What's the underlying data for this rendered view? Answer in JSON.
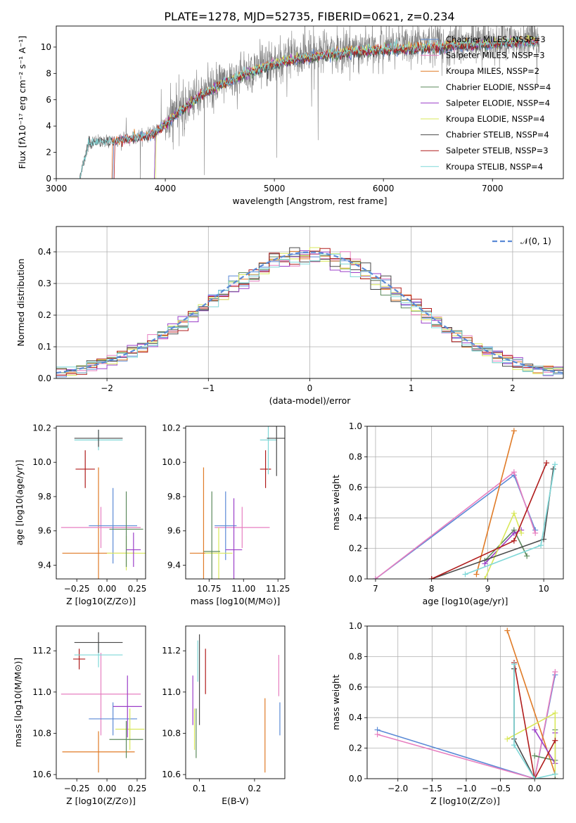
{
  "suptitle": "PLATE=1278, MJD=52735, FIBERID=0621, z=0.234",
  "colors": {
    "chabrier_miles": "#5b8ad6",
    "salpeter_miles": "#e77fc0",
    "kroupa_miles": "#e07b27",
    "chabrier_elodie": "#5c8a5c",
    "salpeter_elodie": "#9b3fc8",
    "kroupa_elodie": "#d9e85a",
    "chabrier_stelib": "#4a4a4a",
    "salpeter_stelib": "#b01c1c",
    "kroupa_stelib": "#7fd8d8",
    "data": "#808080",
    "normal": "#5b8ad6"
  },
  "chart_data": [
    {
      "id": "spectrum",
      "type": "line",
      "xlabel": "wavelength [Angstrom, rest frame]",
      "ylabel": "Flux [fλ10⁻¹⁷ erg cm⁻² s⁻¹ A⁻¹]",
      "xlim": [
        3000,
        7650
      ],
      "ylim": [
        0,
        11.6
      ],
      "xticks": [
        3000,
        4000,
        5000,
        6000,
        7000
      ],
      "yticks": [
        0,
        2,
        4,
        6,
        8,
        10
      ],
      "legend_position": "right",
      "legend": [
        "Chabrier MILES, NSSP=3",
        "Salpeter MILES, NSSP=3",
        "Kroupa MILES, NSSP=2",
        "Chabrier ELODIE, NSSP=4",
        "Salpeter ELODIE, NSSP=4",
        "Kroupa ELODIE, NSSP=4",
        "Chabrier STELIB, NSSP=4",
        "Salpeter STELIB, NSSP=3",
        "Kroupa STELIB, NSSP=4"
      ],
      "continuum": {
        "wavelength": [
          3210,
          3300,
          3500,
          3700,
          3900,
          4000,
          4100,
          4300,
          4500,
          4700,
          4900,
          5100,
          5300,
          5500,
          5700,
          5900,
          6100,
          6300,
          6500,
          6700,
          6900,
          7100,
          7300,
          7430
        ],
        "flux": [
          0.0,
          2.8,
          2.9,
          3.1,
          3.5,
          4.2,
          5.0,
          6.3,
          7.2,
          8.0,
          8.6,
          9.1,
          9.4,
          9.6,
          9.8,
          9.9,
          10.0,
          10.1,
          10.2,
          10.3,
          10.4,
          10.5,
          10.6,
          10.7
        ]
      }
    },
    {
      "id": "residuals",
      "type": "line",
      "xlabel": "(data-model)/error",
      "ylabel": "Normed distribution",
      "xlim": [
        -2.5,
        2.5
      ],
      "ylim": [
        0,
        0.48
      ],
      "xticks": [
        -2,
        -1,
        0,
        1,
        2
      ],
      "yticks": [
        0.0,
        0.1,
        0.2,
        0.3,
        0.4
      ],
      "grid": true,
      "legend_position": "top-right",
      "legend": [
        "𝒩(0, 1)"
      ]
    },
    {
      "id": "age_vs_Z",
      "type": "scatter",
      "xlabel": "Z [log10(Z/Z⊙)]",
      "ylabel": "age [log10(age/yr)]",
      "xlim": [
        -0.42,
        0.32
      ],
      "ylim": [
        9.32,
        10.21
      ],
      "xticks": [
        -0.25,
        0.0,
        0.25
      ],
      "yticks": [
        9.4,
        9.6,
        9.8,
        10.0,
        10.2
      ],
      "points": [
        {
          "c": "kroupa_miles",
          "x": -0.07,
          "xe": 0.3,
          "y": 9.47,
          "ye": 0.5
        },
        {
          "c": "salpeter_miles",
          "x": -0.05,
          "xe": 0.33,
          "y": 9.62,
          "ye": 0.12
        },
        {
          "c": "chabrier_miles",
          "x": 0.05,
          "xe": 0.2,
          "y": 9.63,
          "ye": 0.22
        },
        {
          "c": "kroupa_elodie",
          "x": 0.16,
          "xe": 0.16,
          "y": 9.47,
          "ye": 0.1
        },
        {
          "c": "chabrier_elodie",
          "x": 0.16,
          "xe": 0.14,
          "y": 9.61,
          "ye": 0.22
        },
        {
          "c": "salpeter_elodie",
          "x": 0.22,
          "xe": 0.06,
          "y": 9.49,
          "ye": 0.1
        },
        {
          "c": "salpeter_stelib",
          "x": -0.18,
          "xe": 0.08,
          "y": 9.96,
          "ye": 0.11
        },
        {
          "c": "kroupa_stelib",
          "x": -0.07,
          "xe": 0.2,
          "y": 10.13,
          "ye": 0.06
        },
        {
          "c": "chabrier_stelib",
          "x": -0.07,
          "xe": 0.2,
          "y": 10.14,
          "ye": 0.05
        }
      ]
    },
    {
      "id": "age_vs_mass",
      "type": "scatter",
      "xlabel": "mass [log10(M/M⊙)]",
      "ylabel": "",
      "xlim": [
        10.58,
        11.3
      ],
      "ylim": [
        9.32,
        10.21
      ],
      "xticks": [
        10.75,
        11.0,
        11.25
      ],
      "yticks": [
        9.4,
        9.6,
        9.8,
        10.0,
        10.2
      ],
      "points": [
        {
          "c": "kroupa_miles",
          "x": 10.71,
          "xe": 0.1,
          "y": 9.47,
          "ye": 0.5
        },
        {
          "c": "salpeter_miles",
          "x": 10.99,
          "xe": 0.2,
          "y": 9.62,
          "ye": 0.12
        },
        {
          "c": "chabrier_miles",
          "x": 10.87,
          "xe": 0.08,
          "y": 9.63,
          "ye": 0.2
        },
        {
          "c": "kroupa_elodie",
          "x": 10.82,
          "xe": 0.1,
          "y": 9.47,
          "ye": 0.15
        },
        {
          "c": "chabrier_elodie",
          "x": 10.77,
          "xe": 0.06,
          "y": 9.48,
          "ye": 0.35
        },
        {
          "c": "salpeter_elodie",
          "x": 10.93,
          "xe": 0.06,
          "y": 9.49,
          "ye": 0.3
        },
        {
          "c": "salpeter_stelib",
          "x": 11.16,
          "xe": 0.04,
          "y": 9.96,
          "ye": 0.11
        },
        {
          "c": "kroupa_stelib",
          "x": 11.18,
          "xe": 0.06,
          "y": 10.13,
          "ye": 0.2
        },
        {
          "c": "chabrier_stelib",
          "x": 11.24,
          "xe": 0.07,
          "y": 10.14,
          "ye": 0.22
        }
      ]
    },
    {
      "id": "weight_vs_age",
      "type": "line",
      "xlabel": "age [log10(age/yr)]",
      "ylabel": "mass weight",
      "xlim": [
        6.85,
        10.35
      ],
      "ylim": [
        0,
        1.0
      ],
      "xticks": [
        7,
        8,
        9,
        10
      ],
      "yticks": [
        0.0,
        0.2,
        0.4,
        0.6,
        0.8,
        1.0
      ],
      "grid": true,
      "series": [
        {
          "c": "chabrier_miles",
          "x": [
            7.0,
            9.47,
            9.85
          ],
          "y": [
            0.0,
            0.68,
            0.32
          ]
        },
        {
          "c": "salpeter_miles",
          "x": [
            7.0,
            9.47,
            9.85
          ],
          "y": [
            0.0,
            0.7,
            0.3
          ]
        },
        {
          "c": "kroupa_miles",
          "x": [
            8.8,
            9.47
          ],
          "y": [
            0.03,
            0.97
          ]
        },
        {
          "c": "chabrier_elodie",
          "x": [
            8.95,
            9.47,
            9.7
          ],
          "y": [
            0.12,
            0.32,
            0.15
          ]
        },
        {
          "c": "salpeter_elodie",
          "x": [
            8.95,
            9.47,
            9.6
          ],
          "y": [
            0.1,
            0.3,
            0.32
          ]
        },
        {
          "c": "kroupa_elodie",
          "x": [
            8.95,
            9.47,
            9.6
          ],
          "y": [
            0.0,
            0.43,
            0.3
          ]
        },
        {
          "c": "chabrier_stelib",
          "x": [
            8.0,
            10.0,
            10.17
          ],
          "y": [
            0.0,
            0.26,
            0.72
          ]
        },
        {
          "c": "salpeter_stelib",
          "x": [
            8.0,
            9.47,
            10.05
          ],
          "y": [
            0.0,
            0.25,
            0.76
          ]
        },
        {
          "c": "kroupa_stelib",
          "x": [
            8.6,
            9.95,
            10.2
          ],
          "y": [
            0.03,
            0.22,
            0.75
          ]
        }
      ]
    },
    {
      "id": "mass_vs_Z",
      "type": "scatter",
      "xlabel": "Z [log10(Z/Z⊙)]",
      "ylabel": "mass [log10(M/M⊙)]",
      "xlim": [
        -0.42,
        0.32
      ],
      "ylim": [
        10.58,
        11.32
      ],
      "xticks": [
        -0.25,
        0.0,
        0.25
      ],
      "yticks": [
        10.6,
        10.8,
        11.0,
        11.2
      ],
      "points": [
        {
          "c": "kroupa_miles",
          "x": -0.07,
          "xe": 0.3,
          "y": 10.71,
          "ye": 0.1
        },
        {
          "c": "salpeter_miles",
          "x": -0.05,
          "xe": 0.33,
          "y": 10.99,
          "ye": 0.2
        },
        {
          "c": "chabrier_miles",
          "x": 0.05,
          "xe": 0.2,
          "y": 10.87,
          "ye": 0.08
        },
        {
          "c": "kroupa_elodie",
          "x": 0.19,
          "xe": 0.12,
          "y": 10.82,
          "ye": 0.1
        },
        {
          "c": "chabrier_elodie",
          "x": 0.16,
          "xe": 0.14,
          "y": 10.77,
          "ye": 0.09
        },
        {
          "c": "salpeter_elodie",
          "x": 0.17,
          "xe": 0.12,
          "y": 10.93,
          "ye": 0.15
        },
        {
          "c": "salpeter_stelib",
          "x": -0.23,
          "xe": 0.05,
          "y": 11.16,
          "ye": 0.05
        },
        {
          "c": "kroupa_stelib",
          "x": -0.07,
          "xe": 0.2,
          "y": 11.18,
          "ye": 0.06
        },
        {
          "c": "chabrier_stelib",
          "x": -0.07,
          "xe": 0.2,
          "y": 11.24,
          "ye": 0.05
        }
      ]
    },
    {
      "id": "mass_vs_ebv",
      "type": "scatter",
      "xlabel": "E(B-V)",
      "ylabel": "",
      "xlim": [
        0.075,
        0.255
      ],
      "ylim": [
        10.58,
        11.32
      ],
      "xticks": [
        0.1,
        0.2
      ],
      "yticks": [
        10.6,
        10.8,
        11.0,
        11.2
      ],
      "points": [
        {
          "c": "kroupa_miles",
          "x": 0.219,
          "xe": 0,
          "y": 10.79,
          "ye": 0.18
        },
        {
          "c": "salpeter_miles",
          "x": 0.244,
          "xe": 0,
          "y": 11.08,
          "ye": 0.1
        },
        {
          "c": "chabrier_miles",
          "x": 0.246,
          "xe": 0,
          "y": 10.87,
          "ye": 0.08
        },
        {
          "c": "kroupa_elodie",
          "x": 0.091,
          "xe": 0,
          "y": 10.82,
          "ye": 0.1
        },
        {
          "c": "chabrier_elodie",
          "x": 0.094,
          "xe": 0,
          "y": 10.8,
          "ye": 0.12
        },
        {
          "c": "salpeter_elodie",
          "x": 0.088,
          "xe": 0,
          "y": 10.96,
          "ye": 0.12
        },
        {
          "c": "salpeter_stelib",
          "x": 0.111,
          "xe": 0,
          "y": 11.1,
          "ye": 0.11
        },
        {
          "c": "kroupa_stelib",
          "x": 0.097,
          "xe": 0,
          "y": 11.15,
          "ye": 0.1
        },
        {
          "c": "chabrier_stelib",
          "x": 0.1,
          "xe": 0,
          "y": 11.06,
          "ye": 0.22
        }
      ]
    },
    {
      "id": "weight_vs_Z",
      "type": "line",
      "xlabel": "Z [log10(Z/Z⊙)]",
      "ylabel": "mass weight",
      "xlim": [
        -2.45,
        0.42
      ],
      "ylim": [
        0,
        1.0
      ],
      "xticks": [
        -2.0,
        -1.5,
        -1.0,
        -0.5,
        0.0
      ],
      "yticks": [
        0.0,
        0.2,
        0.4,
        0.6,
        0.8,
        1.0
      ],
      "grid": true,
      "series": [
        {
          "c": "chabrier_miles",
          "x": [
            -2.3,
            0.0,
            0.3
          ],
          "y": [
            0.32,
            0.0,
            0.68
          ]
        },
        {
          "c": "salpeter_miles",
          "x": [
            -2.3,
            0.0,
            0.3
          ],
          "y": [
            0.29,
            0.0,
            0.7
          ]
        },
        {
          "c": "kroupa_miles",
          "x": [
            -0.4,
            0.3
          ],
          "y": [
            0.97,
            0.03
          ]
        },
        {
          "c": "chabrier_elodie",
          "x": [
            0.0,
            0.3,
            0.3
          ],
          "y": [
            0.15,
            0.12,
            0.32
          ]
        },
        {
          "c": "salpeter_elodie",
          "x": [
            0.0,
            0.3,
            0.3
          ],
          "y": [
            0.32,
            0.1,
            0.3
          ]
        },
        {
          "c": "kroupa_elodie",
          "x": [
            -0.4,
            0.3,
            0.3
          ],
          "y": [
            0.26,
            0.43,
            0.0
          ]
        },
        {
          "c": "chabrier_stelib",
          "x": [
            -0.3,
            -0.3,
            0.0,
            0.3
          ],
          "y": [
            0.72,
            0.26,
            0.0,
            0.0
          ]
        },
        {
          "c": "salpeter_stelib",
          "x": [
            -0.3,
            0.0,
            0.3
          ],
          "y": [
            0.76,
            0.0,
            0.25
          ]
        },
        {
          "c": "kroupa_stelib",
          "x": [
            -0.3,
            -0.3,
            0.0,
            0.3
          ],
          "y": [
            0.75,
            0.22,
            0.0,
            0.03
          ]
        }
      ]
    }
  ]
}
